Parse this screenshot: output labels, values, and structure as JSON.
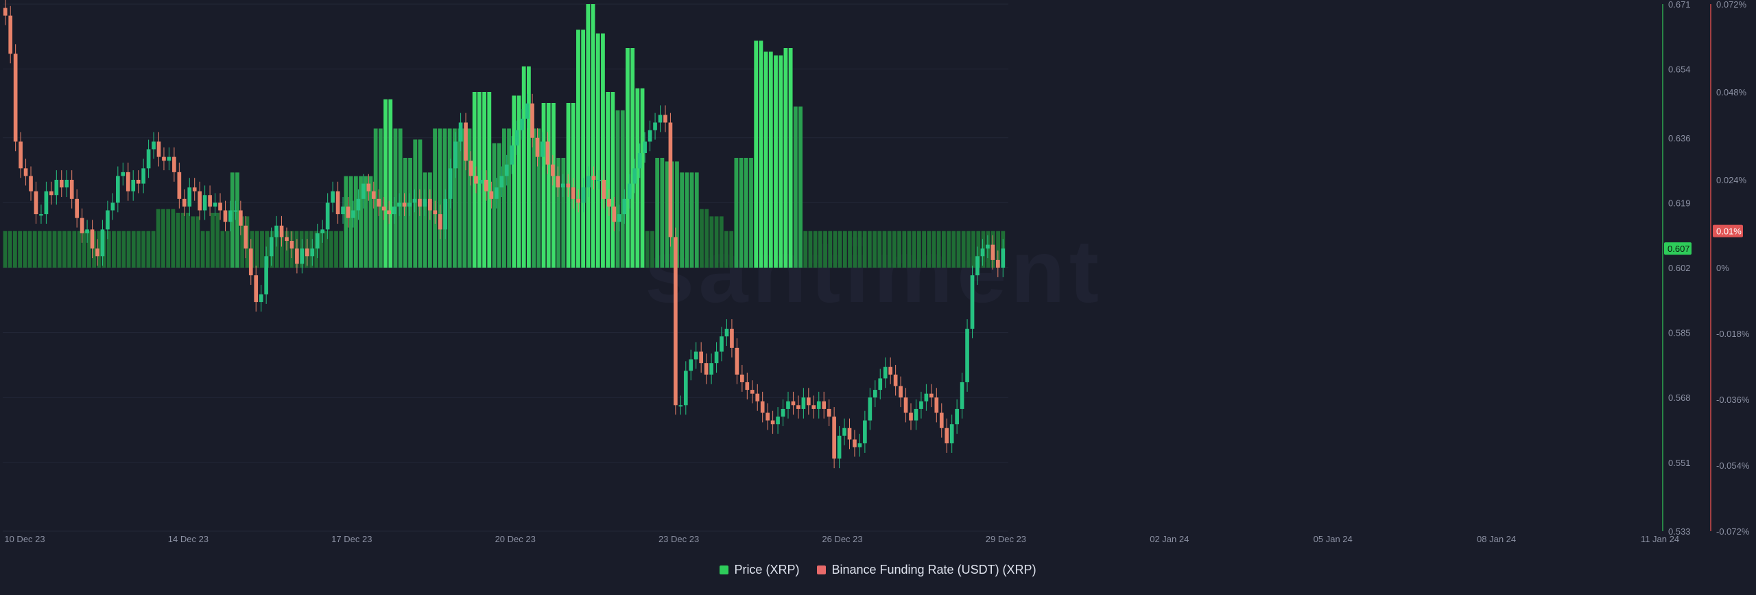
{
  "watermark": "santiment",
  "colors": {
    "background": "#191c29",
    "price_up": "#26c281",
    "price_down": "#e8826a",
    "funding_positive": "#2ecc5a",
    "funding_negative": "#e05555",
    "grid": "#232738",
    "axis_text": "#8c91a3"
  },
  "legend": [
    {
      "label": "Price (XRP)",
      "color": "#2ecc5a"
    },
    {
      "label": "Binance Funding Rate (USDT) (XRP)",
      "color": "#e86a6a"
    }
  ],
  "chart_data": {
    "type": "bar+candlestick",
    "x_labels": [
      "10 Dec 23",
      "14 Dec 23",
      "17 Dec 23",
      "20 Dec 23",
      "23 Dec 23",
      "26 Dec 23",
      "29 Dec 23",
      "02 Jan 24",
      "05 Jan 24",
      "08 Jan 24",
      "11 Jan 24"
    ],
    "price_axis": {
      "ticks": [
        "0.671",
        "0.654",
        "0.636",
        "0.619",
        "0.602",
        "0.585",
        "0.568",
        "0.551",
        "0.533"
      ],
      "min": 0.533,
      "max": 0.671,
      "current": "0.607"
    },
    "funding_axis": {
      "ticks": [
        "0.072%",
        "0.048%",
        "0.024%",
        "0%",
        "-0.018%",
        "-0.036%",
        "-0.054%",
        "-0.072%"
      ],
      "min": -0.072,
      "max": 0.072,
      "current": "0.01%"
    },
    "series": [
      {
        "name": "Price (XRP)",
        "kind": "candlestick",
        "close": [
          0.668,
          0.658,
          0.635,
          0.628,
          0.626,
          0.622,
          0.616,
          0.616,
          0.622,
          0.621,
          0.625,
          0.623,
          0.625,
          0.62,
          0.615,
          0.611,
          0.612,
          0.607,
          0.605,
          0.612,
          0.617,
          0.619,
          0.626,
          0.627,
          0.622,
          0.625,
          0.624,
          0.628,
          0.633,
          0.635,
          0.631,
          0.63,
          0.631,
          0.627,
          0.62,
          0.618,
          0.623,
          0.622,
          0.617,
          0.621,
          0.618,
          0.619,
          0.617,
          0.614,
          0.617,
          0.617,
          0.613,
          0.607,
          0.6,
          0.593,
          0.595,
          0.605,
          0.61,
          0.613,
          0.61,
          0.609,
          0.607,
          0.603,
          0.607,
          0.605,
          0.607,
          0.611,
          0.612,
          0.619,
          0.622,
          0.616,
          0.618,
          0.615,
          0.617,
          0.62,
          0.624,
          0.622,
          0.62,
          0.618,
          0.617,
          0.616,
          0.618,
          0.619,
          0.618,
          0.619,
          0.62,
          0.618,
          0.62,
          0.617,
          0.616,
          0.612,
          0.62,
          0.628,
          0.635,
          0.64,
          0.63,
          0.626,
          0.624,
          0.625,
          0.622,
          0.62,
          0.623,
          0.626,
          0.629,
          0.634,
          0.638,
          0.641,
          0.645,
          0.636,
          0.631,
          0.635,
          0.629,
          0.626,
          0.623,
          0.624,
          0.623,
          0.62,
          0.619,
          0.623,
          0.626,
          0.625,
          0.625,
          0.62,
          0.618,
          0.614,
          0.616,
          0.62,
          0.624,
          0.628,
          0.632,
          0.635,
          0.638,
          0.64,
          0.642,
          0.64,
          0.61,
          0.566,
          0.566,
          0.575,
          0.578,
          0.58,
          0.577,
          0.574,
          0.577,
          0.58,
          0.584,
          0.586,
          0.581,
          0.574,
          0.572,
          0.57,
          0.569,
          0.567,
          0.564,
          0.562,
          0.561,
          0.563,
          0.565,
          0.567,
          0.566,
          0.565,
          0.568,
          0.566,
          0.565,
          0.567,
          0.565,
          0.563,
          0.552,
          0.558,
          0.56,
          0.557,
          0.555,
          0.556,
          0.562,
          0.568,
          0.57,
          0.573,
          0.576,
          0.574,
          0.571,
          0.568,
          0.564,
          0.562,
          0.565,
          0.567,
          0.569,
          0.568,
          0.564,
          0.56,
          0.556,
          0.561,
          0.565,
          0.572,
          0.586,
          0.6,
          0.605,
          0.607,
          0.608,
          0.604,
          0.602,
          0.607
        ],
        "open": [
          0.67,
          0.668,
          0.658,
          0.635,
          0.628,
          0.626,
          0.622,
          0.616,
          0.616,
          0.622,
          0.621,
          0.625,
          0.623,
          0.625,
          0.62,
          0.615,
          0.611,
          0.612,
          0.607,
          0.605,
          0.612,
          0.617,
          0.619,
          0.626,
          0.627,
          0.622,
          0.625,
          0.624,
          0.628,
          0.633,
          0.635,
          0.631,
          0.63,
          0.631,
          0.627,
          0.62,
          0.618,
          0.623,
          0.622,
          0.617,
          0.621,
          0.618,
          0.619,
          0.617,
          0.614,
          0.617,
          0.617,
          0.613,
          0.607,
          0.6,
          0.593,
          0.595,
          0.605,
          0.61,
          0.613,
          0.61,
          0.609,
          0.607,
          0.603,
          0.607,
          0.605,
          0.607,
          0.611,
          0.612,
          0.619,
          0.622,
          0.616,
          0.618,
          0.615,
          0.617,
          0.62,
          0.624,
          0.622,
          0.62,
          0.618,
          0.617,
          0.616,
          0.618,
          0.619,
          0.618,
          0.619,
          0.62,
          0.618,
          0.62,
          0.617,
          0.616,
          0.612,
          0.62,
          0.628,
          0.635,
          0.64,
          0.63,
          0.626,
          0.624,
          0.625,
          0.622,
          0.62,
          0.623,
          0.626,
          0.629,
          0.634,
          0.638,
          0.641,
          0.645,
          0.636,
          0.631,
          0.635,
          0.629,
          0.626,
          0.623,
          0.624,
          0.623,
          0.62,
          0.619,
          0.623,
          0.626,
          0.625,
          0.625,
          0.62,
          0.618,
          0.614,
          0.616,
          0.62,
          0.624,
          0.628,
          0.632,
          0.635,
          0.638,
          0.64,
          0.642,
          0.64,
          0.61,
          0.566,
          0.566,
          0.575,
          0.578,
          0.58,
          0.577,
          0.574,
          0.577,
          0.58,
          0.584,
          0.586,
          0.581,
          0.574,
          0.572,
          0.57,
          0.569,
          0.567,
          0.564,
          0.562,
          0.561,
          0.563,
          0.565,
          0.567,
          0.566,
          0.565,
          0.568,
          0.566,
          0.565,
          0.567,
          0.565,
          0.563,
          0.552,
          0.558,
          0.56,
          0.557,
          0.555,
          0.556,
          0.562,
          0.568,
          0.57,
          0.573,
          0.576,
          0.574,
          0.571,
          0.568,
          0.564,
          0.562,
          0.565,
          0.567,
          0.569,
          0.568,
          0.564,
          0.56,
          0.556,
          0.561,
          0.565,
          0.572,
          0.586,
          0.6,
          0.605,
          0.607,
          0.608,
          0.604,
          0.602
        ]
      },
      {
        "name": "Binance Funding Rate (USDT) (XRP)",
        "kind": "bar",
        "values": [
          0.01,
          0.01,
          0.01,
          0.01,
          0.01,
          0.01,
          0.01,
          0.01,
          0.01,
          0.01,
          0.01,
          0.01,
          0.01,
          0.01,
          0.01,
          0.01,
          0.01,
          0.01,
          0.01,
          0.01,
          0.01,
          0.01,
          0.01,
          0.01,
          0.01,
          0.01,
          0.01,
          0.01,
          0.01,
          0.01,
          0.01,
          0.016,
          0.016,
          0.016,
          0.016,
          0.015,
          0.015,
          0.015,
          0.014,
          0.014,
          0.01,
          0.01,
          0.015,
          0.015,
          0.01,
          0.01,
          0.026,
          0.026,
          0.014,
          0.014,
          0.01,
          0.01,
          0.01,
          0.01,
          0.01,
          0.01,
          0.01,
          0.01,
          0.01,
          0.01,
          0.01,
          0.01,
          0.01,
          0.01,
          0.01,
          0.01,
          0.01,
          0.01,
          0.01,
          0.025,
          0.025,
          0.025,
          0.025,
          0.025,
          0.025,
          0.038,
          0.038,
          0.046,
          0.046,
          0.038,
          0.038,
          0.03,
          0.03,
          0.035,
          0.035,
          0.026,
          0.026,
          0.038,
          0.038,
          0.038,
          0.038,
          0.038,
          0.038,
          0.038,
          0.038,
          0.048,
          0.048,
          0.048,
          0.048,
          0.034,
          0.034,
          0.038,
          0.038,
          0.047,
          0.047,
          0.055,
          0.055,
          0.038,
          0.038,
          0.045,
          0.045,
          0.045,
          0.03,
          0.03,
          0.045,
          0.045,
          0.065,
          0.065,
          0.072,
          0.072,
          0.064,
          0.064,
          0.048,
          0.048,
          0.043,
          0.043,
          0.06,
          0.06,
          0.049,
          0.049,
          0.01,
          0.01,
          0.03,
          0.03,
          0.029,
          0.029,
          0.029,
          0.026,
          0.026,
          0.026,
          0.026,
          0.016,
          0.016,
          0.014,
          0.014,
          0.014,
          0.01,
          0.01,
          0.03,
          0.03,
          0.03,
          0.03,
          0.062,
          0.062,
          0.059,
          0.059,
          0.058,
          0.058,
          0.06,
          0.06,
          0.044,
          0.044,
          0.01,
          0.01,
          0.01,
          0.01,
          0.01,
          0.01,
          0.01,
          0.01,
          0.01,
          0.01,
          0.01,
          0.01,
          0.01,
          0.01,
          0.01,
          0.01,
          0.01,
          0.01,
          0.01,
          0.01,
          0.01,
          0.01,
          0.01,
          0.01,
          0.01,
          0.01,
          0.01,
          0.01,
          0.01,
          0.01,
          0.01,
          0.01,
          0.01,
          0.01,
          0.01,
          0.01,
          0.01,
          0.01,
          0.01,
          0.01,
          0.01
        ]
      }
    ]
  }
}
